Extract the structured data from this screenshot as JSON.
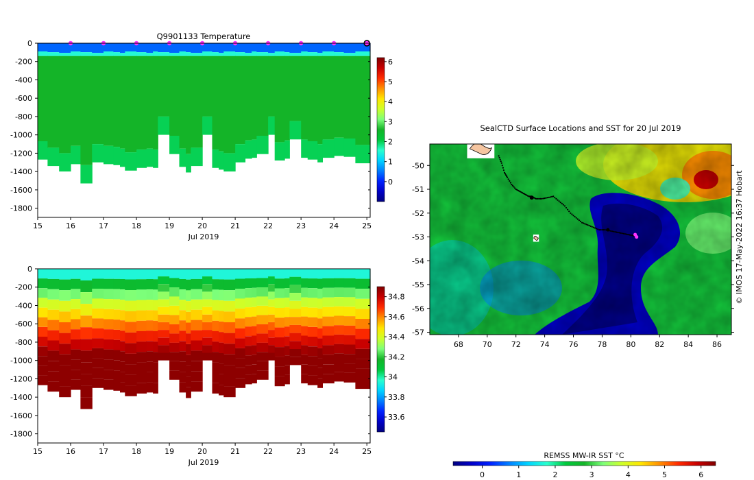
{
  "colors": {
    "jet": [
      "#00007f",
      "#0000c8",
      "#0022ff",
      "#0080ff",
      "#00d4ff",
      "#29ffce",
      "#00c83c",
      "#14b428",
      "#7dff7a",
      "#ceff29",
      "#ffe600",
      "#ff8f00",
      "#ff2b00",
      "#c80000",
      "#7f0000"
    ],
    "marker": "#ff33ff"
  },
  "chart_data": [
    {
      "type": "heatmap",
      "title": "Q9901133  Temperature",
      "xlabel": "Jul 2019",
      "x_ticks": [
        "15",
        "16",
        "17",
        "18",
        "19",
        "20",
        "21",
        "22",
        "23",
        "24",
        "25"
      ],
      "xlim": [
        15,
        25.1
      ],
      "y_ticks": [
        "0",
        "-200",
        "-400",
        "-600",
        "-800",
        "-1000",
        "-1200",
        "-1400",
        "-1600",
        "-1800"
      ],
      "ylim": [
        -1900,
        0
      ],
      "colorbar_ticks": [
        "0",
        "1",
        "2",
        "3",
        "4",
        "5",
        "6"
      ],
      "colorbar_range": [
        -1,
        6.2
      ],
      "surface_value": 0.4,
      "transition_value": 1.5,
      "interior_value": 2.6,
      "bottom_value": 2.0,
      "profile_days": [
        15.0,
        15.3,
        15.65,
        16.0,
        16.3,
        16.65,
        17.0,
        17.3,
        17.5,
        17.65,
        18.0,
        18.3,
        18.5,
        18.65,
        19.0,
        19.3,
        19.5,
        19.65,
        20.0,
        20.3,
        20.5,
        20.65,
        21.0,
        21.3,
        21.5,
        21.65,
        22.0,
        22.2,
        22.5,
        22.65,
        23.0,
        23.2,
        23.5,
        23.65,
        24.0,
        24.3,
        24.65
      ],
      "profile_max_depth": [
        1270,
        1340,
        1400,
        1320,
        1530,
        1300,
        1320,
        1330,
        1350,
        1390,
        1360,
        1350,
        1360,
        1000,
        1210,
        1350,
        1410,
        1340,
        1000,
        1360,
        1380,
        1400,
        1300,
        1260,
        1250,
        1210,
        1000,
        1280,
        1260,
        1050,
        1250,
        1270,
        1300,
        1250,
        1230,
        1240,
        1310
      ],
      "markers_x": [
        16,
        17,
        18,
        19,
        20,
        21,
        22,
        23,
        24
      ],
      "end_marker_x": 25.0
    },
    {
      "type": "heatmap",
      "title": "",
      "xlabel": "Jul 2019",
      "x_ticks": [
        "15",
        "16",
        "17",
        "18",
        "19",
        "20",
        "21",
        "22",
        "23",
        "24",
        "25"
      ],
      "xlim": [
        15,
        25.1
      ],
      "y_ticks": [
        "0",
        "-200",
        "-400",
        "-600",
        "-800",
        "-1000",
        "-1200",
        "-1400",
        "-1600",
        "-1800"
      ],
      "ylim": [
        -1900,
        0
      ],
      "colorbar_ticks": [
        "33.6",
        "33.8",
        "34",
        "34.2",
        "34.4",
        "34.6",
        "34.8"
      ],
      "colorbar_range": [
        33.45,
        34.9
      ],
      "surface_value": 33.85,
      "deep_value": 34.88
    },
    {
      "type": "heatmap",
      "title": "SealCTD Surface Locations and SST for 20 Jul 2019",
      "x_ticks": [
        "68",
        "70",
        "72",
        "74",
        "76",
        "78",
        "80",
        "82",
        "84",
        "86"
      ],
      "xlim": [
        66,
        87
      ],
      "y_ticks": [
        "-50",
        "-51",
        "-52",
        "-53",
        "-54",
        "-55",
        "-56",
        "-57"
      ],
      "ylim": [
        -57.1,
        -49.1
      ],
      "colorbar_label": "REMSS MW-IR SST °C",
      "colorbar_ticks": [
        "0",
        "1",
        "2",
        "3",
        "4",
        "5",
        "6"
      ],
      "colorbar_range": [
        -0.8,
        6.4
      ],
      "islands": [
        {
          "name": "Kerguelen",
          "lon": [
            68.6,
            70.5
          ],
          "lat": [
            -48.9,
            -49.7
          ]
        },
        {
          "name": "Heard Island",
          "lon": [
            73.2,
            73.6
          ],
          "lat": [
            -52.9,
            -53.2
          ]
        }
      ],
      "track": {
        "lon": [
          70.8,
          71.0,
          71.2,
          71.4,
          71.7,
          72.0,
          72.3,
          72.6,
          72.9,
          73.1,
          73.4,
          73.8,
          74.2,
          74.6,
          75.0,
          75.4,
          75.8,
          76.2,
          76.6,
          77.0,
          77.4,
          77.8,
          78.2,
          78.6,
          79.0,
          79.4,
          79.8,
          80.2
        ],
        "lat": [
          -49.6,
          -49.9,
          -50.3,
          -50.5,
          -50.8,
          -51.0,
          -51.1,
          -51.2,
          -51.3,
          -51.3,
          -51.4,
          -51.4,
          -51.35,
          -51.3,
          -51.5,
          -51.7,
          -52.0,
          -52.2,
          -52.4,
          -52.5,
          -52.6,
          -52.7,
          -52.7,
          -52.75,
          -52.8,
          -52.85,
          -52.9,
          -52.95
        ]
      },
      "latest_positions": [
        {
          "lon": 80.3,
          "lat": -52.9
        },
        {
          "lon": 80.4,
          "lat": -53.0
        }
      ],
      "credit": "© IMOS 17-May-2022 16:37 Hobart"
    }
  ]
}
